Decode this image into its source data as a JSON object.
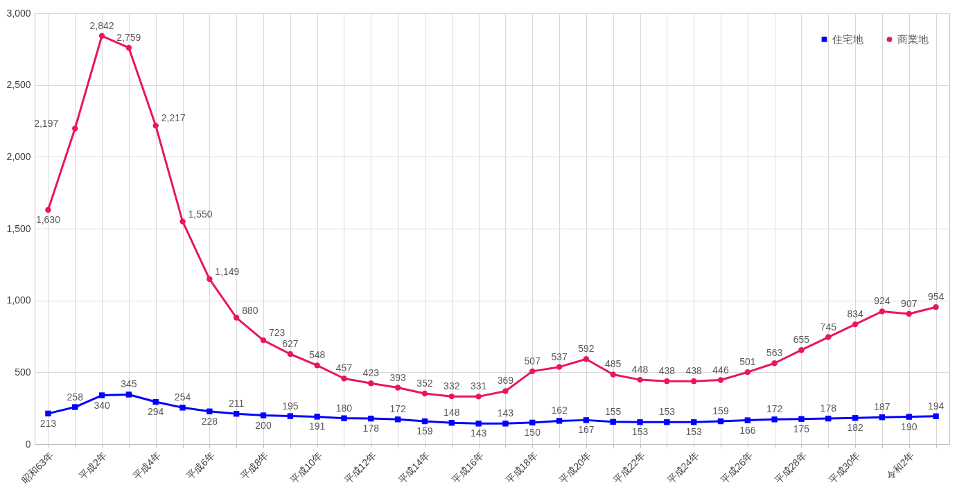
{
  "chart_data": {
    "type": "line",
    "categories": [
      "昭和63年",
      null,
      "平成2年",
      null,
      "平成4年",
      null,
      "平成6年",
      null,
      "平成8年",
      null,
      "平成10年",
      null,
      "平成12年",
      null,
      "平成14年",
      null,
      "平成16年",
      null,
      "平成18年",
      null,
      "平成20年",
      null,
      "平成22年",
      null,
      "平成24年",
      null,
      "平成26年",
      null,
      "平成28年",
      null,
      "平成30年",
      null,
      "令和2年",
      null
    ],
    "series": [
      {
        "name": "住宅地",
        "color": "#0000ff",
        "marker": "square",
        "values": [
          213,
          258,
          340,
          345,
          294,
          254,
          228,
          211,
          200,
          195,
          191,
          180,
          178,
          172,
          159,
          148,
          143,
          143,
          150,
          162,
          167,
          155,
          153,
          153,
          153,
          159,
          166,
          172,
          175,
          178,
          182,
          187,
          190,
          194
        ],
        "value_labels": [
          "213",
          "258",
          "340",
          "345",
          "294",
          "254",
          "228",
          "211",
          "200",
          "195",
          "191",
          "180",
          "178",
          "172",
          "159",
          "148",
          "143",
          "143",
          "150",
          "162",
          "167",
          "155",
          "153",
          "153",
          "153",
          "159",
          "166",
          "172",
          "175",
          "178",
          "182",
          "187",
          "190",
          "194"
        ]
      },
      {
        "name": "商業地",
        "color": "#e8175d",
        "marker": "circle",
        "values": [
          1630,
          2197,
          2842,
          2759,
          2217,
          1550,
          1149,
          880,
          723,
          627,
          548,
          457,
          423,
          393,
          352,
          332,
          331,
          369,
          507,
          537,
          592,
          485,
          448,
          438,
          438,
          446,
          501,
          563,
          655,
          745,
          834,
          924,
          907,
          954
        ],
        "value_labels": [
          "1,630",
          "2,197",
          "2,842",
          "2,759",
          "2,217",
          "1,550",
          "1,149",
          "880",
          "723",
          "627",
          "548",
          "457",
          "423",
          "393",
          "352",
          "332",
          "331",
          "369",
          "507",
          "537",
          "592",
          "485",
          "448",
          "438",
          "438",
          "446",
          "501",
          "563",
          "655",
          "745",
          "834",
          "924",
          "907",
          "954"
        ]
      }
    ],
    "ylim": [
      0,
      3000
    ],
    "yticks": [
      0,
      {
        "value": 500,
        "label": "500"
      },
      {
        "value": 1000,
        "label": "1,000"
      },
      {
        "value": 1500,
        "label": "1,500"
      },
      {
        "value": 2000,
        "label": "2,000"
      },
      {
        "value": 2500,
        "label": "2,500"
      },
      {
        "value": 3000,
        "label": "3,000"
      }
    ],
    "grid": true,
    "legend": "top right"
  }
}
